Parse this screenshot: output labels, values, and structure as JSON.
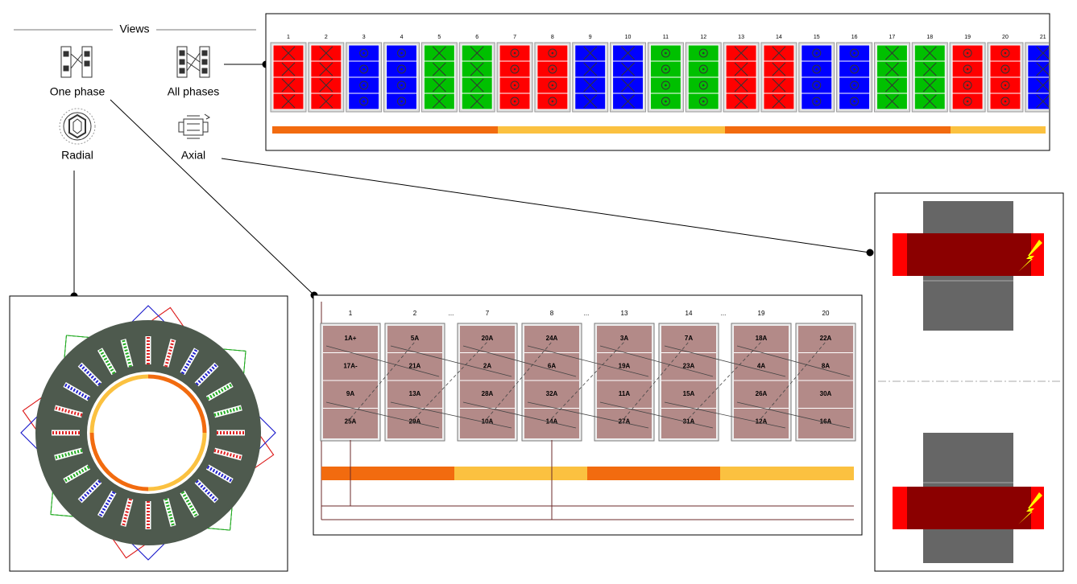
{
  "views": {
    "title": "Views",
    "items": [
      "One phase",
      "All phases",
      "Radial",
      "Axial"
    ]
  },
  "all_phases": {
    "slots": [
      {
        "label": "1",
        "color": "#ff0000",
        "symbol": "cross"
      },
      {
        "label": "2",
        "color": "#ff0000",
        "symbol": "cross"
      },
      {
        "label": "3",
        "color": "#0000ff",
        "symbol": "dot"
      },
      {
        "label": "4",
        "color": "#0000ff",
        "symbol": "dot"
      },
      {
        "label": "5",
        "color": "#00c000",
        "symbol": "cross"
      },
      {
        "label": "6",
        "color": "#00c000",
        "symbol": "cross"
      },
      {
        "label": "7",
        "color": "#ff0000",
        "symbol": "dot"
      },
      {
        "label": "8",
        "color": "#ff0000",
        "symbol": "dot"
      },
      {
        "label": "9",
        "color": "#0000ff",
        "symbol": "cross"
      },
      {
        "label": "10",
        "color": "#0000ff",
        "symbol": "cross"
      },
      {
        "label": "11",
        "color": "#00c000",
        "symbol": "dot"
      },
      {
        "label": "12",
        "color": "#00c000",
        "symbol": "dot"
      },
      {
        "label": "13",
        "color": "#ff0000",
        "symbol": "cross"
      },
      {
        "label": "14",
        "color": "#ff0000",
        "symbol": "cross"
      },
      {
        "label": "15",
        "color": "#0000ff",
        "symbol": "dot"
      },
      {
        "label": "16",
        "color": "#0000ff",
        "symbol": "dot"
      },
      {
        "label": "17",
        "color": "#00c000",
        "symbol": "cross"
      },
      {
        "label": "18",
        "color": "#00c000",
        "symbol": "cross"
      },
      {
        "label": "19",
        "color": "#ff0000",
        "symbol": "dot"
      },
      {
        "label": "20",
        "color": "#ff0000",
        "symbol": "dot"
      },
      {
        "label": "21",
        "color": "#0000ff",
        "symbol": "cross"
      }
    ]
  },
  "one_phase": {
    "header": [
      "1",
      "2",
      "...",
      "7",
      "8",
      "...",
      "13",
      "14",
      "...",
      "19",
      "20"
    ],
    "columns": [
      [
        "1A+",
        "17A-",
        "9A",
        "25A"
      ],
      [
        "5A",
        "21A",
        "13A",
        "29A"
      ],
      [
        "20A",
        "2A",
        "28A",
        "10A"
      ],
      [
        "24A",
        "6A",
        "32A",
        "14A"
      ],
      [
        "3A",
        "19A",
        "11A",
        "27A"
      ],
      [
        "7A",
        "23A",
        "15A",
        "31A"
      ],
      [
        "18A",
        "4A",
        "26A",
        "12A"
      ],
      [
        "22A",
        "8A",
        "30A",
        "16A"
      ]
    ]
  }
}
